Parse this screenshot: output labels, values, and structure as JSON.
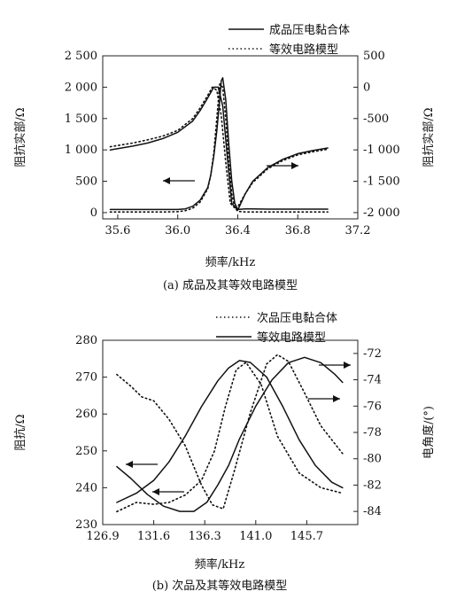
{
  "chart_data": [
    {
      "type": "line",
      "caption": "(a) 成品及其等效电路模型",
      "xlabel": "频率/kHz",
      "ylabel_left": "阻抗实部/Ω",
      "ylabel_right": "阻抗实部/Ω",
      "xlim": [
        35.5,
        37.2
      ],
      "ylim_left": [
        -100,
        2500
      ],
      "ylim_right": [
        -2100,
        500
      ],
      "xticks": [
        "35.6",
        "36.0",
        "36.4",
        "36.8",
        "37.2"
      ],
      "yticks_left": [
        "0",
        "500",
        "1 000",
        "1 500",
        "2 000",
        "2 500"
      ],
      "yticks_right": [
        "-2 000",
        "-1 500",
        "-1 000",
        "-500",
        "0",
        "500"
      ],
      "legend": [
        {
          "name": "成品压电黏合体",
          "style": "solid"
        },
        {
          "name": "等效电路模型",
          "style": "dotted"
        }
      ],
      "series": [
        {
          "name": "成品压电黏合体",
          "style": "solid",
          "axis": "left",
          "x": [
            35.55,
            35.6,
            35.7,
            35.8,
            35.9,
            36.0,
            36.05,
            36.1,
            36.15,
            36.2,
            36.22,
            36.24,
            36.26,
            36.28,
            36.29,
            36.3,
            36.32,
            36.34,
            36.36,
            36.38,
            36.4,
            36.45,
            36.5,
            36.6,
            36.7,
            36.8,
            36.9,
            37.0
          ],
          "y": [
            50,
            50,
            50,
            50,
            50,
            50,
            60,
            100,
            200,
            400,
            600,
            900,
            1300,
            1800,
            2100,
            2150,
            1800,
            1100,
            500,
            150,
            50,
            60,
            60,
            55,
            55,
            55,
            55,
            55
          ]
        },
        {
          "name": "等效电路模型",
          "style": "dotted",
          "axis": "left",
          "x": [
            35.55,
            35.6,
            35.7,
            35.8,
            35.9,
            36.0,
            36.05,
            36.1,
            36.15,
            36.2,
            36.22,
            36.24,
            36.26,
            36.28,
            36.3,
            36.32,
            36.34,
            36.36,
            36.38,
            36.4,
            36.45,
            36.5,
            36.6,
            36.7,
            36.8,
            36.9,
            37.0
          ],
          "y": [
            10,
            10,
            10,
            10,
            10,
            15,
            30,
            70,
            170,
            380,
            600,
            950,
            1500,
            2050,
            2000,
            1500,
            800,
            300,
            80,
            20,
            10,
            10,
            10,
            10,
            10,
            10,
            10
          ]
        },
        {
          "name": "成品压电黏合体",
          "style": "solid",
          "axis": "right",
          "x": [
            35.55,
            35.6,
            35.7,
            35.8,
            35.9,
            36.0,
            36.1,
            36.15,
            36.2,
            36.24,
            36.27,
            36.3,
            36.33,
            36.36,
            36.4,
            36.45,
            36.5,
            36.6,
            36.7,
            36.8,
            36.9,
            37.0
          ],
          "y": [
            -1000,
            -980,
            -940,
            -890,
            -820,
            -720,
            -540,
            -370,
            -170,
            0,
            0,
            -300,
            -1100,
            -1850,
            -1960,
            -1700,
            -1500,
            -1280,
            -1150,
            -1060,
            -1010,
            -970
          ]
        },
        {
          "name": "等效电路模型",
          "style": "dotted",
          "axis": "right",
          "x": [
            35.55,
            35.6,
            35.7,
            35.8,
            35.9,
            36.0,
            36.1,
            36.15,
            36.2,
            36.23,
            36.26,
            36.29,
            36.32,
            36.35,
            36.39,
            36.45,
            36.5,
            36.6,
            36.7,
            36.8,
            36.9,
            37.0
          ],
          "y": [
            -950,
            -930,
            -890,
            -840,
            -780,
            -690,
            -500,
            -330,
            -130,
            0,
            -50,
            -450,
            -1200,
            -1850,
            -1950,
            -1700,
            -1520,
            -1300,
            -1170,
            -1080,
            -1030,
            -990
          ]
        }
      ]
    },
    {
      "type": "line",
      "caption": "(b) 次品及其等效电路模型",
      "xlabel": "频率/kHz",
      "ylabel_left": "阻抗/Ω",
      "ylabel_right": "电角度/(°)",
      "xlim": [
        126.9,
        150.4
      ],
      "ylim_left": [
        230,
        280
      ],
      "ylim_right": [
        -85,
        -71
      ],
      "xticks": [
        "126.9",
        "131.6",
        "136.3",
        "141.0",
        "145.7"
      ],
      "yticks_left": [
        "230",
        "240",
        "250",
        "260",
        "270",
        "280"
      ],
      "yticks_right": [
        "-84",
        "-82",
        "-80",
        "-78",
        "-76",
        "-74",
        "-72"
      ],
      "legend": [
        {
          "name": "次品压电黏合体",
          "style": "dotted"
        },
        {
          "name": "等效电路模型",
          "style": "solid"
        }
      ],
      "series": [
        {
          "name": "次品压电黏合体",
          "style": "dotted",
          "axis": "left",
          "x": [
            128.2,
            130.0,
            131.6,
            133.0,
            134.5,
            136.0,
            137.2,
            138.2,
            139.2,
            140.1,
            141.5,
            143.0,
            145.0,
            147.0,
            149.0
          ],
          "y": [
            233.5,
            236.0,
            235.5,
            236.0,
            238.0,
            242.0,
            250.0,
            262.0,
            272.0,
            274.0,
            268.0,
            254.0,
            244.0,
            240.0,
            238.5
          ]
        },
        {
          "name": "等效电路模型",
          "style": "solid",
          "axis": "left",
          "x": [
            128.2,
            130.0,
            131.6,
            133.0,
            134.5,
            136.0,
            137.5,
            138.5,
            139.5,
            140.5,
            142.0,
            143.5,
            145.0,
            146.5,
            148.0,
            149.0
          ],
          "y": [
            236.0,
            238.5,
            242.0,
            247.0,
            254.0,
            262.0,
            269.0,
            272.5,
            274.5,
            274.0,
            270.0,
            262.0,
            253.0,
            246.0,
            241.5,
            240.0
          ]
        },
        {
          "name": "次品压电黏合体",
          "style": "dotted",
          "axis": "right",
          "x": [
            128.2,
            129.5,
            130.5,
            131.6,
            133.0,
            134.5,
            136.0,
            137.0,
            138.0,
            139.0,
            140.5,
            142.0,
            143.0,
            144.0,
            145.5,
            147.0,
            149.0
          ],
          "y": [
            -73.6,
            -74.5,
            -75.3,
            -75.6,
            -77.0,
            -79.0,
            -82.0,
            -83.5,
            -83.8,
            -81.0,
            -76.5,
            -72.8,
            -72.1,
            -72.6,
            -75.0,
            -77.5,
            -79.6
          ]
        },
        {
          "name": "等效电路模型",
          "style": "solid",
          "axis": "right",
          "x": [
            128.2,
            129.5,
            131.0,
            132.5,
            134.0,
            135.3,
            136.5,
            137.5,
            138.5,
            139.5,
            141.0,
            142.5,
            144.0,
            145.5,
            147.0,
            148.3,
            149.0
          ],
          "y": [
            -80.6,
            -81.5,
            -82.7,
            -83.6,
            -84.0,
            -84.0,
            -83.3,
            -82.0,
            -80.5,
            -78.5,
            -76.0,
            -74.0,
            -72.7,
            -72.3,
            -72.7,
            -73.6,
            -74.2
          ]
        }
      ]
    }
  ]
}
